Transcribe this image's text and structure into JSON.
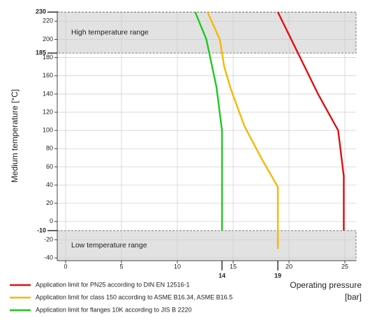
{
  "chart_data": {
    "type": "line",
    "x_label": "Operating pressure",
    "x_unit": "[bar]",
    "y_label": "Medium temperature [°C]",
    "xlim": [
      -0.75,
      26
    ],
    "ylim": [
      -43,
      231
    ],
    "xticks": [
      0,
      5,
      10,
      15,
      20,
      25
    ],
    "yticks": [
      -40,
      -20,
      0,
      20,
      40,
      60,
      80,
      100,
      120,
      140,
      160,
      180,
      200,
      220
    ],
    "x_marked_ticks": [
      14,
      19
    ],
    "y_marked_ticks": [
      230,
      185,
      -10
    ],
    "grid": true,
    "ranges": [
      {
        "label": "High temperature range",
        "from": 185,
        "to": 230
      },
      {
        "label": "Low temperature range",
        "from": -43,
        "to": -10
      }
    ],
    "series": [
      {
        "name": "Application limit for PN25 according to DIN EN 12516-1",
        "color": "#e01010",
        "x": [
          19,
          21,
          22.6,
          24.4,
          24.9,
          24.9
        ],
        "values": [
          230,
          180,
          140,
          100,
          50,
          -10
        ]
      },
      {
        "name": "Application limit for class 150 according to ASME B16.34, ASME B16.5",
        "color": "#f5b800",
        "x": [
          12.7,
          13.8,
          14.2,
          14.8,
          16,
          17.5,
          19,
          19
        ],
        "values": [
          230,
          200,
          170,
          145,
          105,
          70,
          38,
          -30
        ]
      },
      {
        "name": "Application limit for flanges 10K according to JIS B 2220",
        "color": "#1ec81e",
        "x": [
          11.6,
          12.6,
          13.5,
          14,
          14
        ],
        "values": [
          230,
          200,
          148,
          100,
          -10
        ]
      }
    ]
  }
}
